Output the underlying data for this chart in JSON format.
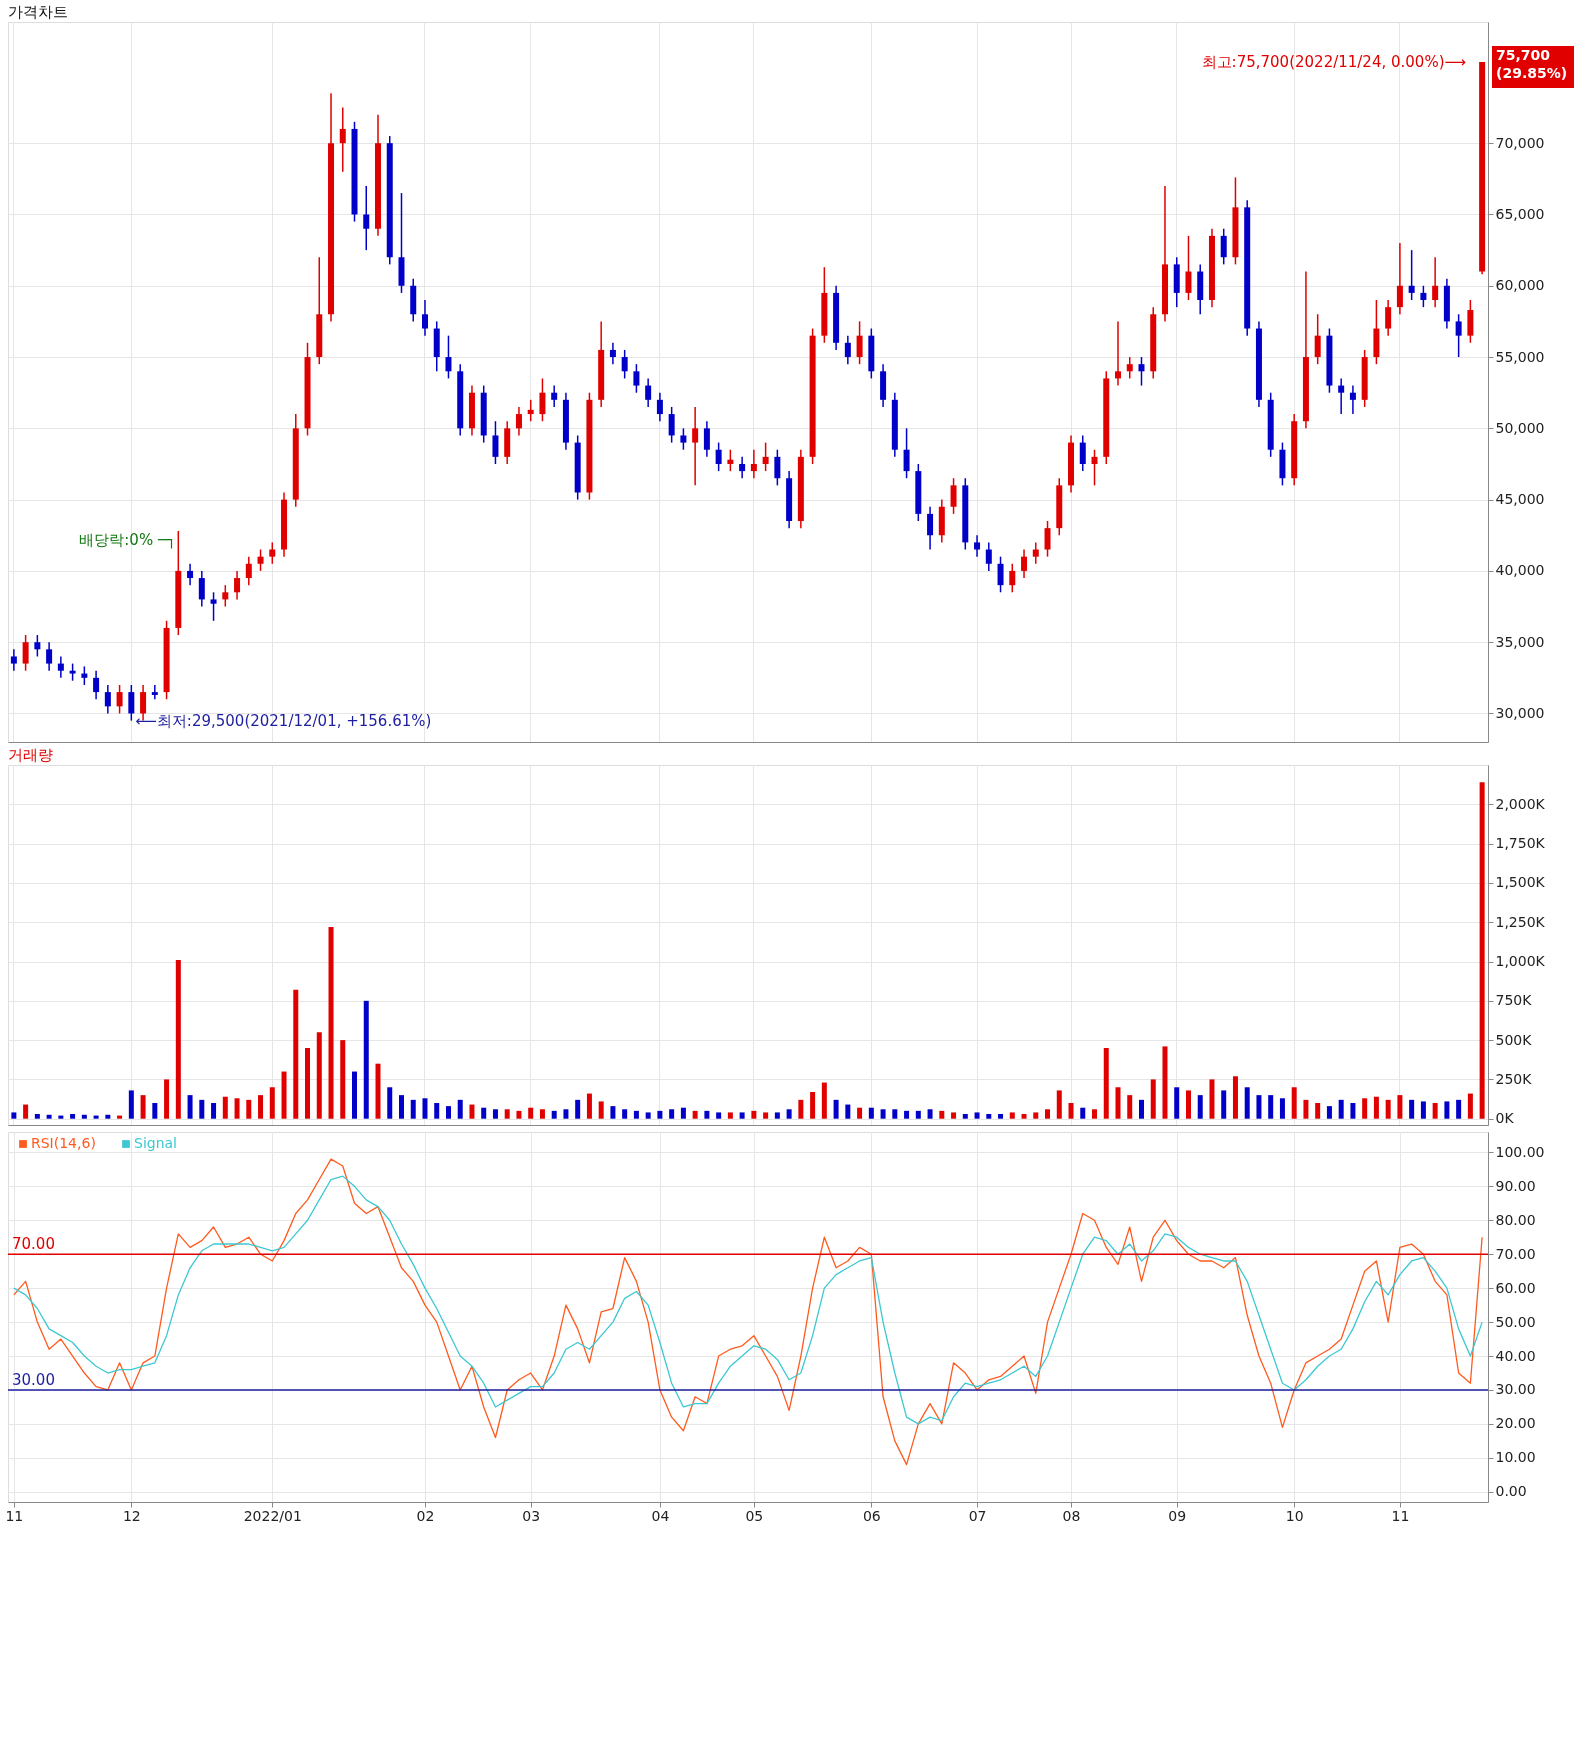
{
  "chart_data": [
    {
      "type": "candlestick",
      "title": "가격차트",
      "categories": [
        "11",
        null,
        null,
        null,
        null,
        null,
        null,
        null,
        null,
        null,
        "12",
        null,
        null,
        null,
        null,
        null,
        null,
        null,
        null,
        null,
        null,
        null,
        "2022/01",
        null,
        null,
        null,
        null,
        null,
        null,
        null,
        null,
        null,
        null,
        null,
        null,
        "02",
        null,
        null,
        null,
        null,
        null,
        null,
        null,
        null,
        "03",
        null,
        null,
        null,
        null,
        null,
        null,
        null,
        null,
        null,
        null,
        "04",
        null,
        null,
        null,
        null,
        null,
        null,
        null,
        "05",
        null,
        null,
        null,
        null,
        null,
        null,
        null,
        null,
        null,
        "06",
        null,
        null,
        null,
        null,
        null,
        null,
        null,
        null,
        "07",
        null,
        null,
        null,
        null,
        null,
        null,
        null,
        "08",
        null,
        null,
        null,
        null,
        null,
        null,
        null,
        null,
        "09",
        null,
        null,
        null,
        null,
        null,
        null,
        null,
        null,
        null,
        "10",
        null,
        null,
        null,
        null,
        null,
        null,
        null,
        null,
        "11",
        null,
        null,
        null,
        null,
        null,
        null,
        null
      ],
      "ohlc": [
        [
          34000,
          34500,
          33000,
          33500
        ],
        [
          33500,
          35500,
          33000,
          35000
        ],
        [
          35000,
          35500,
          34000,
          34500
        ],
        [
          34500,
          35000,
          33000,
          33500
        ],
        [
          33500,
          34000,
          32500,
          33000
        ],
        [
          33000,
          33500,
          32300,
          32800
        ],
        [
          32800,
          33300,
          32000,
          32500
        ],
        [
          32500,
          33000,
          31000,
          31500
        ],
        [
          31500,
          32000,
          30000,
          30500
        ],
        [
          30500,
          32000,
          30000,
          31500
        ],
        [
          31500,
          32000,
          29500,
          30000
        ],
        [
          30000,
          32000,
          29500,
          31500
        ],
        [
          31500,
          32000,
          31000,
          31300
        ],
        [
          31500,
          36500,
          31000,
          36000
        ],
        [
          36000,
          42800,
          35500,
          40000
        ],
        [
          40000,
          40500,
          39000,
          39500
        ],
        [
          39500,
          40000,
          37500,
          38000
        ],
        [
          38000,
          38500,
          36500,
          37700
        ],
        [
          38000,
          39000,
          37500,
          38500
        ],
        [
          38500,
          40000,
          38000,
          39500
        ],
        [
          39500,
          41000,
          39000,
          40500
        ],
        [
          40500,
          41500,
          40000,
          41000
        ],
        [
          41000,
          42000,
          40500,
          41500
        ],
        [
          41500,
          45500,
          41000,
          45000
        ],
        [
          45000,
          51000,
          44500,
          50000
        ],
        [
          50000,
          56000,
          49500,
          55000
        ],
        [
          55000,
          62000,
          54500,
          58000
        ],
        [
          58000,
          73500,
          57500,
          70000
        ],
        [
          70000,
          72500,
          68000,
          71000
        ],
        [
          71000,
          71500,
          64500,
          65000
        ],
        [
          65000,
          67000,
          62500,
          64000
        ],
        [
          64000,
          72000,
          63500,
          70000
        ],
        [
          70000,
          70500,
          61500,
          62000
        ],
        [
          62000,
          66500,
          59500,
          60000
        ],
        [
          60000,
          60500,
          57500,
          58000
        ],
        [
          58000,
          59000,
          56500,
          57000
        ],
        [
          57000,
          57500,
          54000,
          55000
        ],
        [
          55000,
          56500,
          53500,
          54000
        ],
        [
          54000,
          54500,
          49500,
          50000
        ],
        [
          50000,
          53000,
          49500,
          52500
        ],
        [
          52500,
          53000,
          49000,
          49500
        ],
        [
          49500,
          50500,
          47500,
          48000
        ],
        [
          48000,
          50500,
          47500,
          50000
        ],
        [
          50000,
          51500,
          49500,
          51000
        ],
        [
          51000,
          52000,
          50500,
          51300
        ],
        [
          51000,
          53500,
          50500,
          52500
        ],
        [
          52500,
          53000,
          51500,
          52000
        ],
        [
          52000,
          52500,
          48500,
          49000
        ],
        [
          49000,
          49500,
          45000,
          45500
        ],
        [
          45500,
          52500,
          45000,
          52000
        ],
        [
          52000,
          57500,
          51500,
          55500
        ],
        [
          55500,
          56000,
          54500,
          55000
        ],
        [
          55000,
          55500,
          53500,
          54000
        ],
        [
          54000,
          54500,
          52500,
          53000
        ],
        [
          53000,
          53500,
          51500,
          52000
        ],
        [
          52000,
          52500,
          50500,
          51000
        ],
        [
          51000,
          51500,
          49000,
          49500
        ],
        [
          49500,
          50000,
          48500,
          49000
        ],
        [
          49000,
          51500,
          46000,
          50000
        ],
        [
          50000,
          50500,
          48000,
          48500
        ],
        [
          48500,
          49000,
          47000,
          47500
        ],
        [
          47500,
          48500,
          47000,
          47800
        ],
        [
          47500,
          48000,
          46500,
          47000
        ],
        [
          47000,
          48500,
          46500,
          47500
        ],
        [
          47500,
          49000,
          47000,
          48000
        ],
        [
          48000,
          48500,
          46000,
          46500
        ],
        [
          46500,
          47000,
          43000,
          43500
        ],
        [
          43500,
          48500,
          43000,
          48000
        ],
        [
          48000,
          57000,
          47500,
          56500
        ],
        [
          56500,
          61300,
          56000,
          59500
        ],
        [
          59500,
          60000,
          55500,
          56000
        ],
        [
          56000,
          56500,
          54500,
          55000
        ],
        [
          55000,
          57500,
          54500,
          56500
        ],
        [
          56500,
          57000,
          53500,
          54000
        ],
        [
          54000,
          54500,
          51500,
          52000
        ],
        [
          52000,
          52500,
          48000,
          48500
        ],
        [
          48500,
          50000,
          46500,
          47000
        ],
        [
          47000,
          47500,
          43500,
          44000
        ],
        [
          44000,
          44500,
          41500,
          42500
        ],
        [
          42500,
          45000,
          42000,
          44500
        ],
        [
          44500,
          46500,
          44000,
          46000
        ],
        [
          46000,
          46500,
          41500,
          42000
        ],
        [
          42000,
          42500,
          41000,
          41500
        ],
        [
          41500,
          42000,
          40000,
          40500
        ],
        [
          40500,
          41000,
          38500,
          39000
        ],
        [
          39000,
          40500,
          38500,
          40000
        ],
        [
          40000,
          41500,
          39500,
          41000
        ],
        [
          41000,
          42000,
          40500,
          41500
        ],
        [
          41500,
          43500,
          41000,
          43000
        ],
        [
          43000,
          46500,
          42500,
          46000
        ],
        [
          46000,
          49500,
          45500,
          49000
        ],
        [
          49000,
          49500,
          47000,
          47500
        ],
        [
          47500,
          48500,
          46000,
          48000
        ],
        [
          48000,
          54000,
          47500,
          53500
        ],
        [
          53500,
          57500,
          53000,
          54000
        ],
        [
          54000,
          55000,
          53500,
          54500
        ],
        [
          54500,
          55000,
          53000,
          54000
        ],
        [
          54000,
          58500,
          53500,
          58000
        ],
        [
          58000,
          67000,
          57500,
          61500
        ],
        [
          61500,
          62000,
          58500,
          59500
        ],
        [
          59500,
          63500,
          59000,
          61000
        ],
        [
          61000,
          61500,
          58000,
          59000
        ],
        [
          59000,
          64000,
          58500,
          63500
        ],
        [
          63500,
          64000,
          61500,
          62000
        ],
        [
          62000,
          67600,
          61500,
          65500
        ],
        [
          65500,
          66000,
          56500,
          57000
        ],
        [
          57000,
          57500,
          51500,
          52000
        ],
        [
          52000,
          52500,
          48000,
          48500
        ],
        [
          48500,
          49000,
          46000,
          46500
        ],
        [
          46500,
          51000,
          46000,
          50500
        ],
        [
          50500,
          61000,
          50000,
          55000
        ],
        [
          55000,
          58000,
          54500,
          56500
        ],
        [
          56500,
          57000,
          52500,
          53000
        ],
        [
          53000,
          53500,
          51000,
          52500
        ],
        [
          52500,
          53000,
          51000,
          52000
        ],
        [
          52000,
          55500,
          51500,
          55000
        ],
        [
          55000,
          59000,
          54500,
          57000
        ],
        [
          57000,
          59000,
          56500,
          58500
        ],
        [
          58500,
          63000,
          58000,
          60000
        ],
        [
          60000,
          62500,
          59000,
          59500
        ],
        [
          59500,
          60000,
          58500,
          59000
        ],
        [
          59000,
          62000,
          58500,
          60000
        ],
        [
          60000,
          60500,
          57000,
          57500
        ],
        [
          57500,
          58000,
          55000,
          56500
        ],
        [
          56500,
          59000,
          56000,
          58300
        ],
        [
          61000,
          75700,
          60800,
          75700
        ]
      ],
      "colors": [
        "#0000c8",
        "#e00000",
        "#0000c8",
        "#0000c8",
        "#0000c8",
        "#0000c8",
        "#0000c8",
        "#0000c8",
        "#0000c8",
        "#e00000",
        "#0000c8",
        "#e00000",
        "#0000c8",
        "#e00000",
        "#e00000",
        "#0000c8",
        "#0000c8",
        "#0000c8",
        "#e00000",
        "#e00000",
        "#e00000",
        "#e00000",
        "#e00000",
        "#e00000",
        "#e00000",
        "#e00000",
        "#e00000",
        "#e00000",
        "#e00000",
        "#0000c8",
        "#0000c8",
        "#e00000",
        "#0000c8",
        "#0000c8",
        "#0000c8",
        "#0000c8",
        "#0000c8",
        "#0000c8",
        "#0000c8",
        "#e00000",
        "#0000c8",
        "#0000c8",
        "#e00000",
        "#e00000",
        "#e00000",
        "#e00000",
        "#0000c8",
        "#0000c8",
        "#0000c8",
        "#e00000",
        "#e00000",
        "#0000c8",
        "#0000c8",
        "#0000c8",
        "#0000c8",
        "#0000c8",
        "#0000c8",
        "#0000c8",
        "#e00000",
        "#0000c8",
        "#0000c8",
        "#e00000",
        "#0000c8",
        "#e00000",
        "#e00000",
        "#0000c8",
        "#0000c8",
        "#e00000",
        "#e00000",
        "#e00000",
        "#0000c8",
        "#0000c8",
        "#e00000",
        "#0000c8",
        "#0000c8",
        "#0000c8",
        "#0000c8",
        "#0000c8",
        "#0000c8",
        "#e00000",
        "#e00000",
        "#0000c8",
        "#0000c8",
        "#0000c8",
        "#0000c8",
        "#e00000",
        "#e00000",
        "#e00000",
        "#e00000",
        "#e00000",
        "#e00000",
        "#0000c8",
        "#e00000",
        "#e00000",
        "#e00000",
        "#e00000",
        "#0000c8",
        "#e00000",
        "#e00000",
        "#0000c8",
        "#e00000",
        "#0000c8",
        "#e00000",
        "#0000c8",
        "#e00000",
        "#0000c8",
        "#0000c8",
        "#0000c8",
        "#0000c8",
        "#e00000",
        "#e00000",
        "#e00000",
        "#0000c8",
        "#0000c8",
        "#0000c8",
        "#e00000",
        "#e00000",
        "#e00000",
        "#e00000",
        "#0000c8",
        "#0000c8",
        "#e00000",
        "#0000c8",
        "#0000c8",
        "#e00000",
        "#e00000"
      ],
      "ylim": [
        28000,
        78500
      ],
      "yticks": [
        {
          "value": 30000,
          "label": "30,000"
        },
        {
          "value": 35000,
          "label": "35,000"
        },
        {
          "value": 40000,
          "label": "40,000"
        },
        {
          "value": 45000,
          "label": "45,000"
        },
        {
          "value": 50000,
          "label": "50,000"
        },
        {
          "value": 55000,
          "label": "55,000"
        },
        {
          "value": 60000,
          "label": "60,000"
        },
        {
          "value": 65000,
          "label": "65,000"
        },
        {
          "value": 70000,
          "label": "70,000"
        }
      ],
      "grid": true,
      "tick_labels": "y",
      "annotations": [
        "최고:75,700(2022/11/24, 0.00%)⟶",
        {
          "text": "⟵최저:29,500(2021/12/01, +156.61%)",
          "x": "12",
          "y": 29500
        },
        "배당락:0% ─┐",
        "75,700\n(29.85%)"
      ]
    },
    {
      "type": "bar",
      "title": "거래량",
      "categories": [
        "11",
        null,
        null,
        null,
        null,
        null,
        null,
        null,
        null,
        null,
        "12",
        null,
        null,
        null,
        null,
        null,
        null,
        null,
        null,
        null,
        null,
        null,
        "2022/01",
        null,
        null,
        null,
        null,
        null,
        null,
        null,
        null,
        null,
        null,
        null,
        null,
        "02",
        null,
        null,
        null,
        null,
        null,
        null,
        null,
        null,
        "03",
        null,
        null,
        null,
        null,
        null,
        null,
        null,
        null,
        null,
        null,
        "04",
        null,
        null,
        null,
        null,
        null,
        null,
        null,
        "05",
        null,
        null,
        null,
        null,
        null,
        null,
        null,
        null,
        null,
        "06",
        null,
        null,
        null,
        null,
        null,
        null,
        null,
        null,
        "07",
        null,
        null,
        null,
        null,
        null,
        null,
        null,
        "08",
        null,
        null,
        null,
        null,
        null,
        null,
        null,
        null,
        "09",
        null,
        null,
        null,
        null,
        null,
        null,
        null,
        null,
        null,
        "10",
        null,
        null,
        null,
        null,
        null,
        null,
        null,
        null,
        "11",
        null,
        null,
        null,
        null,
        null,
        null,
        null
      ],
      "values": [
        40,
        90,
        30,
        25,
        20,
        30,
        25,
        20,
        25,
        20,
        180,
        150,
        100,
        250,
        1010,
        150,
        120,
        100,
        140,
        130,
        120,
        150,
        200,
        300,
        820,
        450,
        550,
        1220,
        500,
        300,
        750,
        350,
        200,
        150,
        120,
        130,
        100,
        80,
        120,
        90,
        70,
        60,
        60,
        50,
        70,
        60,
        50,
        60,
        120,
        160,
        110,
        80,
        60,
        50,
        40,
        50,
        60,
        70,
        50,
        50,
        40,
        40,
        40,
        50,
        40,
        40,
        60,
        120,
        170,
        230,
        120,
        90,
        70,
        70,
        60,
        60,
        50,
        50,
        60,
        50,
        40,
        30,
        40,
        30,
        30,
        40,
        30,
        40,
        60,
        180,
        100,
        70,
        60,
        450,
        200,
        150,
        120,
        250,
        460,
        200,
        180,
        150,
        250,
        180,
        270,
        200,
        150,
        150,
        130,
        200,
        120,
        100,
        80,
        120,
        100,
        130,
        140,
        120,
        150,
        120,
        110,
        100,
        110,
        120,
        160,
        2140
      ],
      "colors": [
        "#0000c8",
        "#e00000",
        "#0000c8",
        "#0000c8",
        "#0000c8",
        "#0000c8",
        "#0000c8",
        "#0000c8",
        "#0000c8",
        "#e00000",
        "#0000c8",
        "#e00000",
        "#0000c8",
        "#e00000",
        "#e00000",
        "#0000c8",
        "#0000c8",
        "#0000c8",
        "#e00000",
        "#e00000",
        "#e00000",
        "#e00000",
        "#e00000",
        "#e00000",
        "#e00000",
        "#e00000",
        "#e00000",
        "#e00000",
        "#e00000",
        "#0000c8",
        "#0000c8",
        "#e00000",
        "#0000c8",
        "#0000c8",
        "#0000c8",
        "#0000c8",
        "#0000c8",
        "#0000c8",
        "#0000c8",
        "#e00000",
        "#0000c8",
        "#0000c8",
        "#e00000",
        "#e00000",
        "#e00000",
        "#e00000",
        "#0000c8",
        "#0000c8",
        "#0000c8",
        "#e00000",
        "#e00000",
        "#0000c8",
        "#0000c8",
        "#0000c8",
        "#0000c8",
        "#0000c8",
        "#0000c8",
        "#0000c8",
        "#e00000",
        "#0000c8",
        "#0000c8",
        "#e00000",
        "#0000c8",
        "#e00000",
        "#e00000",
        "#0000c8",
        "#0000c8",
        "#e00000",
        "#e00000",
        "#e00000",
        "#0000c8",
        "#0000c8",
        "#e00000",
        "#0000c8",
        "#0000c8",
        "#0000c8",
        "#0000c8",
        "#0000c8",
        "#0000c8",
        "#e00000",
        "#e00000",
        "#0000c8",
        "#0000c8",
        "#0000c8",
        "#0000c8",
        "#e00000",
        "#e00000",
        "#e00000",
        "#e00000",
        "#e00000",
        "#e00000",
        "#0000c8",
        "#e00000",
        "#e00000",
        "#e00000",
        "#e00000",
        "#0000c8",
        "#e00000",
        "#e00000",
        "#0000c8",
        "#e00000",
        "#0000c8",
        "#e00000",
        "#0000c8",
        "#e00000",
        "#0000c8",
        "#0000c8",
        "#0000c8",
        "#0000c8",
        "#e00000",
        "#e00000",
        "#e00000",
        "#0000c8",
        "#0000c8",
        "#0000c8",
        "#e00000",
        "#e00000",
        "#e00000",
        "#e00000",
        "#0000c8",
        "#0000c8",
        "#e00000",
        "#0000c8",
        "#0000c8",
        "#e00000",
        "#e00000"
      ],
      "ylim": [
        -40,
        2250
      ],
      "yticks": [
        {
          "value": 0,
          "label": "0K"
        },
        {
          "value": 250,
          "label": "250K"
        },
        {
          "value": 500,
          "label": "500K"
        },
        {
          "value": 750,
          "label": "750K"
        },
        {
          "value": 1000,
          "label": "1,000K"
        },
        {
          "value": 1250,
          "label": "1,250K"
        },
        {
          "value": 1500,
          "label": "1,500K"
        },
        {
          "value": 1750,
          "label": "1,750K"
        },
        {
          "value": 2000,
          "label": "2,000K"
        }
      ],
      "grid": true,
      "tick_labels": "y"
    },
    {
      "type": "line",
      "categories": [
        "11",
        null,
        null,
        null,
        null,
        null,
        null,
        null,
        null,
        null,
        "12",
        null,
        null,
        null,
        null,
        null,
        null,
        null,
        null,
        null,
        null,
        null,
        "2022/01",
        null,
        null,
        null,
        null,
        null,
        null,
        null,
        null,
        null,
        null,
        null,
        null,
        "02",
        null,
        null,
        null,
        null,
        null,
        null,
        null,
        null,
        "03",
        null,
        null,
        null,
        null,
        null,
        null,
        null,
        null,
        null,
        null,
        "04",
        null,
        null,
        null,
        null,
        null,
        null,
        null,
        "05",
        null,
        null,
        null,
        null,
        null,
        null,
        null,
        null,
        null,
        "06",
        null,
        null,
        null,
        null,
        null,
        null,
        null,
        null,
        "07",
        null,
        null,
        null,
        null,
        null,
        null,
        null,
        "08",
        null,
        null,
        null,
        null,
        null,
        null,
        null,
        null,
        "09",
        null,
        null,
        null,
        null,
        null,
        null,
        null,
        null,
        null,
        "10",
        null,
        null,
        null,
        null,
        null,
        null,
        null,
        null,
        "11",
        null,
        null,
        null,
        null,
        null,
        null,
        null
      ],
      "series": [
        {
          "name": "RSI(14,6)",
          "color": "#ff5a1e",
          "values": [
            58,
            62,
            50,
            42,
            45,
            40,
            35,
            31,
            30,
            38,
            30,
            38,
            40,
            60,
            76,
            72,
            74,
            78,
            72,
            73,
            75,
            70,
            68,
            74,
            82,
            86,
            92,
            98,
            96,
            85,
            82,
            84,
            75,
            66,
            62,
            55,
            50,
            40,
            30,
            37,
            25,
            16,
            30,
            33,
            35,
            30,
            40,
            55,
            48,
            38,
            53,
            54,
            69,
            62,
            50,
            30,
            22,
            18,
            28,
            26,
            40,
            42,
            43,
            46,
            40,
            34,
            24,
            40,
            60,
            75,
            66,
            68,
            72,
            70,
            28,
            15,
            8,
            20,
            26,
            20,
            38,
            35,
            30,
            33,
            34,
            37,
            40,
            29,
            50,
            60,
            70,
            82,
            80,
            72,
            67,
            78,
            62,
            75,
            80,
            74,
            70,
            68,
            68,
            66,
            69,
            52,
            40,
            32,
            19,
            30,
            38,
            40,
            42,
            45,
            55,
            65,
            68,
            50,
            72,
            73,
            70,
            62,
            58,
            35,
            32,
            75
          ]
        },
        {
          "name": "Signal",
          "color": "#3cc8d2",
          "values": [
            60,
            58,
            54,
            48,
            46,
            44,
            40,
            37,
            35,
            36,
            36,
            37,
            38,
            46,
            58,
            66,
            71,
            73,
            73,
            73,
            73,
            72,
            71,
            72,
            76,
            80,
            86,
            92,
            93,
            90,
            86,
            84,
            80,
            73,
            67,
            60,
            54,
            47,
            40,
            37,
            32,
            25,
            27,
            29,
            31,
            31,
            35,
            42,
            44,
            42,
            46,
            50,
            57,
            59,
            55,
            44,
            32,
            25,
            26,
            26,
            32,
            37,
            40,
            43,
            42,
            39,
            33,
            35,
            46,
            60,
            64,
            66,
            68,
            69,
            50,
            35,
            22,
            20,
            22,
            21,
            28,
            32,
            31,
            32,
            33,
            35,
            37,
            34,
            40,
            50,
            60,
            70,
            75,
            74,
            70,
            73,
            68,
            71,
            76,
            75,
            72,
            70,
            69,
            68,
            68,
            62,
            52,
            42,
            32,
            30,
            33,
            37,
            40,
            42,
            48,
            56,
            62,
            58,
            64,
            68,
            69,
            65,
            60,
            48,
            40,
            50
          ]
        }
      ],
      "ylim": [
        -3,
        106
      ],
      "yticks": [
        {
          "value": 0,
          "label": "0.00"
        },
        {
          "value": 10,
          "label": "10.00"
        },
        {
          "value": 20,
          "label": "20.00"
        },
        {
          "value": 30,
          "label": "30.00"
        },
        {
          "value": 40,
          "label": "40.00"
        },
        {
          "value": 50,
          "label": "50.00"
        },
        {
          "value": 60,
          "label": "60.00"
        },
        {
          "value": 70,
          "label": "70.00"
        },
        {
          "value": 80,
          "label": "80.00"
        },
        {
          "value": 90,
          "label": "90.00"
        },
        {
          "value": 100,
          "label": "100.00"
        }
      ],
      "ref_lines": [
        {
          "axis": "y",
          "value": 70,
          "label": "70.00",
          "color": "#e00000"
        },
        {
          "axis": "y",
          "value": 30,
          "label": "30.00",
          "color": "#1e1ea0"
        }
      ],
      "grid": true,
      "legend": "top left"
    }
  ]
}
